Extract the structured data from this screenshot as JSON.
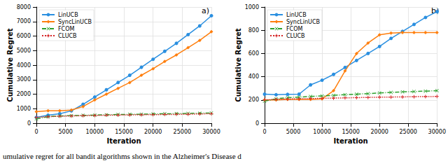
{
  "chart_data": [
    {
      "type": "line",
      "annotation": "a)",
      "x_label": "Iteration",
      "y_label": "Cumulative Regret",
      "x": [
        0,
        2000,
        4000,
        6000,
        8000,
        10000,
        12000,
        14000,
        16000,
        18000,
        20000,
        22000,
        24000,
        26000,
        28000,
        30000
      ],
      "xlim": [
        0,
        30000
      ],
      "xticks": [
        0,
        5000,
        10000,
        15000,
        20000,
        25000,
        30000
      ],
      "ylim": [
        0,
        8000
      ],
      "yticks": [
        0,
        1000,
        2000,
        3000,
        4000,
        5000,
        6000,
        7000,
        8000
      ],
      "grid": true,
      "legend": "upper left",
      "series": [
        {
          "name": "LinUCB",
          "color": "#2a8fe0",
          "marker": "circle",
          "line_style": "solid",
          "values": [
            400,
            550,
            650,
            850,
            1300,
            1800,
            2300,
            2800,
            3300,
            3850,
            4400,
            4950,
            5500,
            6100,
            6700,
            7400
          ]
        },
        {
          "name": "SyncLinUCB",
          "color": "#ff7f0e",
          "marker": "diamond",
          "line_style": "solid",
          "values": [
            800,
            850,
            850,
            900,
            1150,
            1600,
            2000,
            2400,
            2800,
            3300,
            3750,
            4250,
            4700,
            5200,
            5700,
            6300
          ]
        },
        {
          "name": "FCOM",
          "color": "#2ca02c",
          "marker": "x",
          "line_style": "dashdot",
          "values": [
            300,
            450,
            500,
            520,
            540,
            560,
            580,
            600,
            610,
            620,
            640,
            650,
            660,
            670,
            690,
            700
          ]
        },
        {
          "name": "CLUCB",
          "color": "#d62728",
          "marker": "plus",
          "line_style": "dotted",
          "values": [
            400,
            450,
            480,
            500,
            520,
            530,
            550,
            560,
            570,
            580,
            590,
            600,
            610,
            620,
            640,
            650
          ]
        }
      ]
    },
    {
      "type": "line",
      "annotation": "b)",
      "x_label": "Iteration",
      "y_label": "Cumulative Regret",
      "x": [
        0,
        2000,
        4000,
        6000,
        8000,
        10000,
        12000,
        14000,
        16000,
        18000,
        20000,
        22000,
        24000,
        26000,
        28000,
        30000
      ],
      "xlim": [
        0,
        30000
      ],
      "xticks": [
        0,
        5000,
        10000,
        15000,
        20000,
        25000,
        30000
      ],
      "ylim": [
        0,
        1000
      ],
      "yticks": [
        0,
        200,
        400,
        600,
        800,
        1000
      ],
      "grid": true,
      "legend": "upper left",
      "series": [
        {
          "name": "LinUCB",
          "color": "#2a8fe0",
          "marker": "circle",
          "line_style": "solid",
          "values": [
            250,
            245,
            248,
            250,
            330,
            370,
            420,
            480,
            540,
            600,
            660,
            730,
            790,
            850,
            910,
            960
          ]
        },
        {
          "name": "SyncLinUCB",
          "color": "#ff7f0e",
          "marker": "diamond",
          "line_style": "solid",
          "values": [
            200,
            200,
            205,
            205,
            205,
            210,
            280,
            450,
            600,
            690,
            760,
            775,
            780,
            780,
            780,
            780
          ]
        },
        {
          "name": "FCOM",
          "color": "#2ca02c",
          "marker": "x",
          "line_style": "dashdot",
          "values": [
            190,
            210,
            220,
            225,
            230,
            235,
            240,
            245,
            250,
            255,
            260,
            265,
            270,
            272,
            276,
            280
          ]
        },
        {
          "name": "CLUCB",
          "color": "#d62728",
          "marker": "plus",
          "line_style": "dotted",
          "values": [
            200,
            205,
            208,
            210,
            212,
            214,
            216,
            218,
            220,
            222,
            224,
            225,
            226,
            228,
            229,
            230
          ]
        }
      ]
    }
  ],
  "caption": "umulative regret for all bandit algorithms shown in the Alzheimer's Disease d"
}
